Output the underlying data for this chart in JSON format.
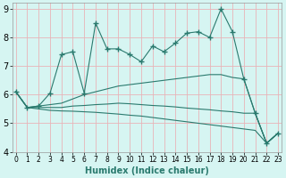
{
  "xlabel": "Humidex (Indice chaleur)",
  "background_color": "#d6f5f2",
  "grid_color": "#e8b4b8",
  "line_color": "#2a7a6e",
  "x_values": [
    0,
    1,
    2,
    3,
    4,
    5,
    6,
    7,
    8,
    9,
    10,
    11,
    12,
    13,
    14,
    15,
    16,
    17,
    18,
    19,
    20,
    21,
    22,
    23
  ],
  "line_main": [
    6.1,
    5.55,
    5.6,
    6.05,
    7.4,
    7.5,
    6.05,
    8.5,
    7.6,
    7.6,
    7.4,
    7.15,
    7.7,
    7.5,
    7.8,
    8.15,
    8.2,
    8.0,
    9.0,
    8.2,
    6.55,
    5.35,
    4.3,
    4.65
  ],
  "line_upper": [
    6.1,
    5.55,
    5.6,
    5.65,
    5.7,
    5.85,
    6.0,
    6.1,
    6.2,
    6.3,
    6.35,
    6.4,
    6.45,
    6.5,
    6.55,
    6.6,
    6.65,
    6.7,
    6.7,
    6.6,
    6.55,
    5.35,
    4.3,
    4.65
  ],
  "line_mid": [
    6.1,
    5.55,
    5.55,
    5.55,
    5.55,
    5.6,
    5.62,
    5.65,
    5.67,
    5.7,
    5.68,
    5.65,
    5.62,
    5.6,
    5.57,
    5.53,
    5.5,
    5.47,
    5.43,
    5.4,
    5.35,
    5.35,
    4.3,
    4.65
  ],
  "line_lower": [
    6.1,
    5.55,
    5.5,
    5.45,
    5.43,
    5.42,
    5.4,
    5.38,
    5.35,
    5.32,
    5.28,
    5.25,
    5.2,
    5.15,
    5.1,
    5.05,
    5.0,
    4.95,
    4.9,
    4.85,
    4.8,
    4.75,
    4.3,
    4.65
  ],
  "ylim": [
    4,
    9.2
  ],
  "xlim": [
    0,
    23
  ],
  "yticks": [
    4,
    5,
    6,
    7,
    8,
    9
  ],
  "xticks": [
    0,
    1,
    2,
    3,
    4,
    5,
    6,
    7,
    8,
    9,
    10,
    11,
    12,
    13,
    14,
    15,
    16,
    17,
    18,
    19,
    20,
    21,
    22,
    23
  ],
  "fontsize": 7
}
